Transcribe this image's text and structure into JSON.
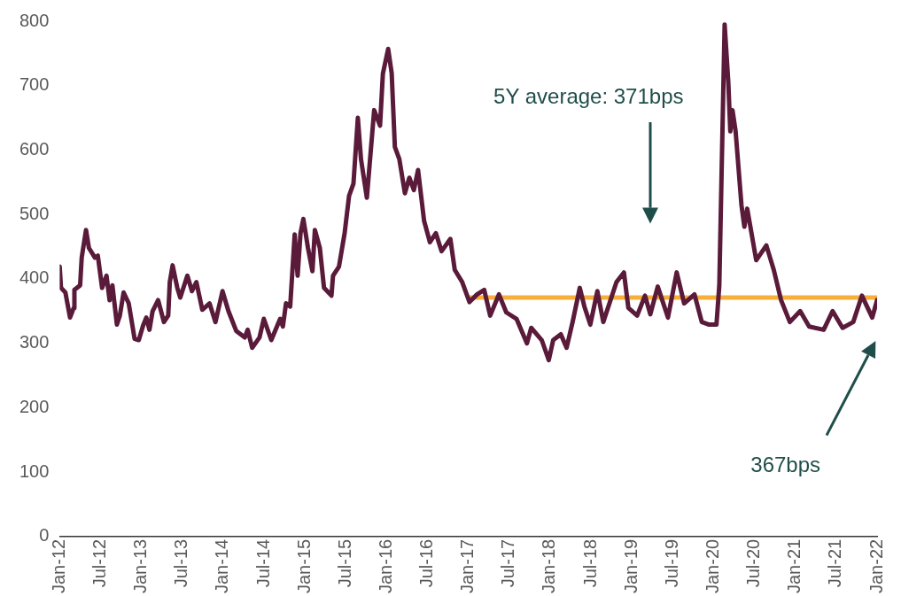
{
  "chart_data": {
    "type": "line",
    "xlim": [
      "2012-01",
      "2022-01"
    ],
    "xticks": [
      {
        "value": "2012-01",
        "label": "Jan-12"
      },
      {
        "value": "2012-07",
        "label": "Jul-12"
      },
      {
        "value": "2013-01",
        "label": "Jan-13"
      },
      {
        "value": "2013-07",
        "label": "Jul-13"
      },
      {
        "value": "2014-01",
        "label": "Jan-14"
      },
      {
        "value": "2014-07",
        "label": "Jul-14"
      },
      {
        "value": "2015-01",
        "label": "Jan-15"
      },
      {
        "value": "2015-07",
        "label": "Jul-15"
      },
      {
        "value": "2016-01",
        "label": "Jan-16"
      },
      {
        "value": "2016-07",
        "label": "Jul-16"
      },
      {
        "value": "2017-01",
        "label": "Jan-17"
      },
      {
        "value": "2017-07",
        "label": "Jul-17"
      },
      {
        "value": "2018-01",
        "label": "Jan-18"
      },
      {
        "value": "2018-07",
        "label": "Jul-18"
      },
      {
        "value": "2019-01",
        "label": "Jan-19"
      },
      {
        "value": "2019-07",
        "label": "Jul-19"
      },
      {
        "value": "2020-01",
        "label": "Jan-20"
      },
      {
        "value": "2020-07",
        "label": "Jul-20"
      },
      {
        "value": "2021-01",
        "label": "Jan-21"
      },
      {
        "value": "2021-07",
        "label": "Jul-21"
      },
      {
        "value": "2022-01",
        "label": "Jan-22"
      }
    ],
    "ylim": [
      0,
      800
    ],
    "yticks": [
      0,
      100,
      200,
      300,
      400,
      500,
      600,
      700,
      800
    ],
    "grid": false,
    "legend": false,
    "marker": "none",
    "line_style": "solid",
    "annotations": [
      "5Y average: 371bps",
      "367bps"
    ],
    "series": [
      {
        "type": "line",
        "color": "#5a1a3a",
        "x": [
          "2012-01-01",
          "2012-01-07",
          "2012-01-27",
          "2012-02-16",
          "2012-03-03",
          "2012-03-06",
          "2012-04-01",
          "2012-04-08",
          "2012-04-27",
          "2012-05-10",
          "2012-06-06",
          "2012-06-19",
          "2012-07-08",
          "2012-07-28",
          "2012-08-11",
          "2012-08-24",
          "2012-09-13",
          "2012-09-26",
          "2012-10-13",
          "2012-11-05",
          "2012-12-01",
          "2012-12-20",
          "2013-01-10",
          "2013-01-23",
          "2013-02-06",
          "2013-02-19",
          "2013-03-15",
          "2013-04-10",
          "2013-04-29",
          "2013-05-06",
          "2013-05-19",
          "2013-06-09",
          "2013-06-22",
          "2013-07-24",
          "2013-08-14",
          "2013-09-03",
          "2013-09-29",
          "2013-11-01",
          "2013-11-27",
          "2013-12-29",
          "2014-01-25",
          "2014-02-27",
          "2014-04-06",
          "2014-04-19",
          "2014-05-09",
          "2014-06-11",
          "2014-06-30",
          "2014-08-03",
          "2014-09-12",
          "2014-09-24",
          "2014-10-08",
          "2014-10-27",
          "2014-11-16",
          "2014-11-29",
          "2014-12-12",
          "2014-12-25",
          "2015-01-15",
          "2015-02-04",
          "2015-02-14",
          "2015-03-07",
          "2015-03-26",
          "2015-04-28",
          "2015-05-05",
          "2015-06-01",
          "2015-06-26",
          "2015-07-16",
          "2015-08-05",
          "2015-08-25",
          "2015-09-08",
          "2015-10-04",
          "2015-11-06",
          "2015-12-02",
          "2015-12-15",
          "2016-01-08",
          "2016-01-24",
          "2016-02-07",
          "2016-02-26",
          "2016-03-22",
          "2016-04-11",
          "2016-05-01",
          "2016-05-20",
          "2016-06-16",
          "2016-07-12",
          "2016-08-08",
          "2016-09-03",
          "2016-10-12",
          "2016-11-01",
          "2016-12-04",
          "2017-01-06",
          "2017-02-09",
          "2017-03-11",
          "2017-04-07",
          "2017-05-16",
          "2017-06-18",
          "2017-08-03",
          "2017-09-19",
          "2017-10-08",
          "2017-11-24",
          "2017-12-26",
          "2018-01-15",
          "2018-02-17",
          "2018-03-14",
          "2018-04-10",
          "2018-05-12",
          "2018-06-02",
          "2018-06-28",
          "2018-07-30",
          "2018-08-26",
          "2018-10-24",
          "2018-11-26",
          "2018-12-16",
          "2019-01-25",
          "2019-02-27",
          "2019-03-23",
          "2019-04-25",
          "2019-06-10",
          "2019-07-19",
          "2019-08-22",
          "2019-10-07",
          "2019-11-09",
          "2019-12-12",
          "2020-01-14",
          "2020-01-27",
          "2020-02-19",
          "2020-03-06",
          "2020-03-15",
          "2020-03-25",
          "2020-04-08",
          "2020-05-04",
          "2020-05-17",
          "2020-05-30",
          "2020-07-09",
          "2020-08-24",
          "2020-09-26",
          "2020-10-29",
          "2020-12-07",
          "2021-01-23",
          "2021-03-02",
          "2021-05-06",
          "2021-06-15",
          "2021-07-30",
          "2021-09-16",
          "2021-10-25",
          "2021-12-10",
          "2022-01-01"
        ],
        "values": [
          419,
          386,
          379,
          340,
          355,
          383,
          390,
          433,
          476,
          448,
          433,
          436,
          386,
          405,
          367,
          390,
          329,
          343,
          379,
          362,
          307,
          305,
          329,
          340,
          321,
          350,
          367,
          333,
          343,
          395,
          421,
          386,
          371,
          405,
          381,
          395,
          352,
          362,
          333,
          381,
          350,
          319,
          309,
          321,
          293,
          309,
          338,
          305,
          338,
          326,
          362,
          357,
          469,
          405,
          471,
          493,
          448,
          412,
          476,
          448,
          386,
          374,
          405,
          419,
          471,
          529,
          548,
          650,
          586,
          526,
          662,
          638,
          719,
          757,
          719,
          605,
          586,
          533,
          557,
          538,
          569,
          490,
          457,
          471,
          443,
          462,
          414,
          395,
          364,
          376,
          383,
          343,
          376,
          348,
          338,
          300,
          324,
          305,
          274,
          305,
          314,
          293,
          333,
          386,
          357,
          329,
          381,
          333,
          395,
          410,
          355,
          343,
          374,
          345,
          388,
          340,
          410,
          362,
          376,
          333,
          329,
          329,
          390,
          795,
          705,
          629,
          662,
          629,
          514,
          481,
          509,
          429,
          452,
          414,
          367,
          333,
          350,
          326,
          321,
          350,
          324,
          333,
          374,
          340,
          367
        ]
      },
      {
        "type": "line",
        "color": "#f7ae3b",
        "x": [
          "2017-01",
          "2022-01"
        ],
        "values": [
          371,
          371
        ]
      }
    ]
  }
}
